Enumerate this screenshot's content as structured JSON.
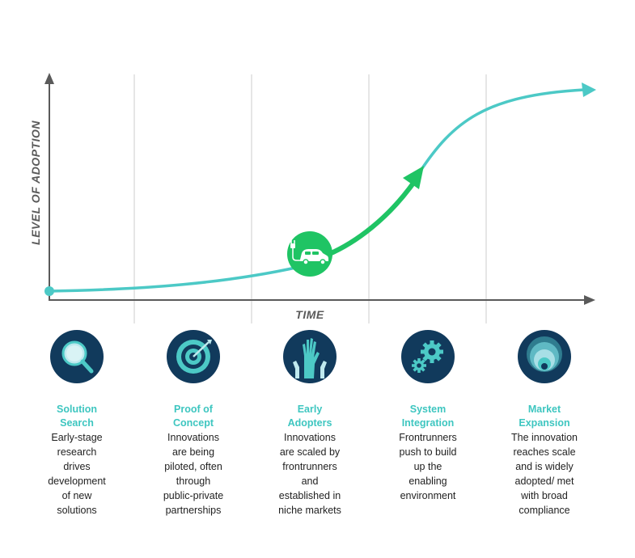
{
  "axes": {
    "y_label": "LEVEL OF ADOPTION",
    "x_label": "TIME"
  },
  "colors": {
    "curve": "#4cc9c6",
    "accent_green": "#1fc464",
    "icon_bg": "#113a5c",
    "title_teal": "#3ec6c0",
    "grid": "#cccccc",
    "axis": "#5a5a5a"
  },
  "milestone_icon": "electric-car-icon",
  "stages": [
    {
      "icon": "magnifier-icon",
      "title": "Solution\nSearch",
      "description": "Early-stage\nresearch\ndrives\ndevelopment\nof new\nsolutions"
    },
    {
      "icon": "target-icon",
      "title": "Proof of\nConcept",
      "description": "Innovations\nare being\npiloted, often\nthrough\npublic-private\npartnerships"
    },
    {
      "icon": "raised-hands-icon",
      "title": "Early\nAdopters",
      "description": "Innovations\nare scaled by\nfrontrunners\nand\nestablished in\nniche markets"
    },
    {
      "icon": "gears-icon",
      "title": "System\nIntegration",
      "description": "Frontrunners\npush to build\nup the\nenabling\nenvironment"
    },
    {
      "icon": "concentric-circles-icon",
      "title": "Market\nExpansion",
      "description": "The innovation\nreaches scale\nand is widely\nadopted/ met\nwith broad\ncompliance"
    }
  ]
}
